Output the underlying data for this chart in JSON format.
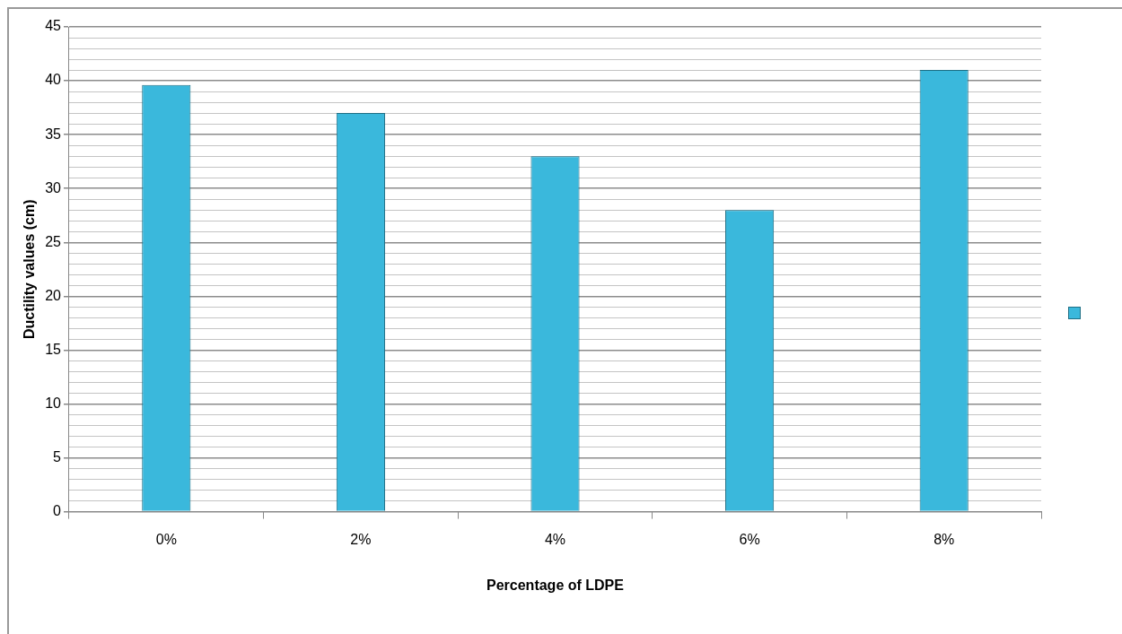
{
  "chart_data": {
    "type": "bar",
    "xlabel": "Percentage of LDPE",
    "ylabel": "Ductility values (cm)",
    "categories": [
      "0%",
      "2%",
      "4%",
      "6%",
      "8%"
    ],
    "series": [
      {
        "color": "#3ab8dc",
        "values": [
          39.6,
          37,
          33,
          28,
          41
        ]
      }
    ],
    "ylim": [
      0,
      45
    ],
    "yticks": [
      0,
      {
        "value": 1,
        "label": null
      },
      {
        "value": 2,
        "label": null
      },
      {
        "value": 3,
        "label": null
      },
      {
        "value": 4,
        "label": null
      },
      5,
      {
        "value": 6,
        "label": null
      },
      {
        "value": 7,
        "label": null
      },
      {
        "value": 8,
        "label": null
      },
      {
        "value": 9,
        "label": null
      },
      10,
      {
        "value": 11,
        "label": null
      },
      {
        "value": 12,
        "label": null
      },
      {
        "value": 13,
        "label": null
      },
      {
        "value": 14,
        "label": null
      },
      15,
      {
        "value": 16,
        "label": null
      },
      {
        "value": 17,
        "label": null
      },
      {
        "value": 18,
        "label": null
      },
      {
        "value": 19,
        "label": null
      },
      20,
      {
        "value": 21,
        "label": null
      },
      {
        "value": 22,
        "label": null
      },
      {
        "value": 23,
        "label": null
      },
      {
        "value": 24,
        "label": null
      },
      25,
      {
        "value": 26,
        "label": null
      },
      {
        "value": 27,
        "label": null
      },
      {
        "value": 28,
        "label": null
      },
      {
        "value": 29,
        "label": null
      },
      30,
      {
        "value": 31,
        "label": null
      },
      {
        "value": 32,
        "label": null
      },
      {
        "value": 33,
        "label": null
      },
      {
        "value": 34,
        "label": null
      },
      35,
      {
        "value": 36,
        "label": null
      },
      {
        "value": 37,
        "label": null
      },
      {
        "value": 38,
        "label": null
      },
      {
        "value": 39,
        "label": null
      },
      40,
      {
        "value": 41,
        "label": null
      },
      {
        "value": 42,
        "label": null
      },
      {
        "value": 43,
        "label": null
      },
      {
        "value": 44,
        "label": null
      },
      45
    ],
    "grid": true
  }
}
